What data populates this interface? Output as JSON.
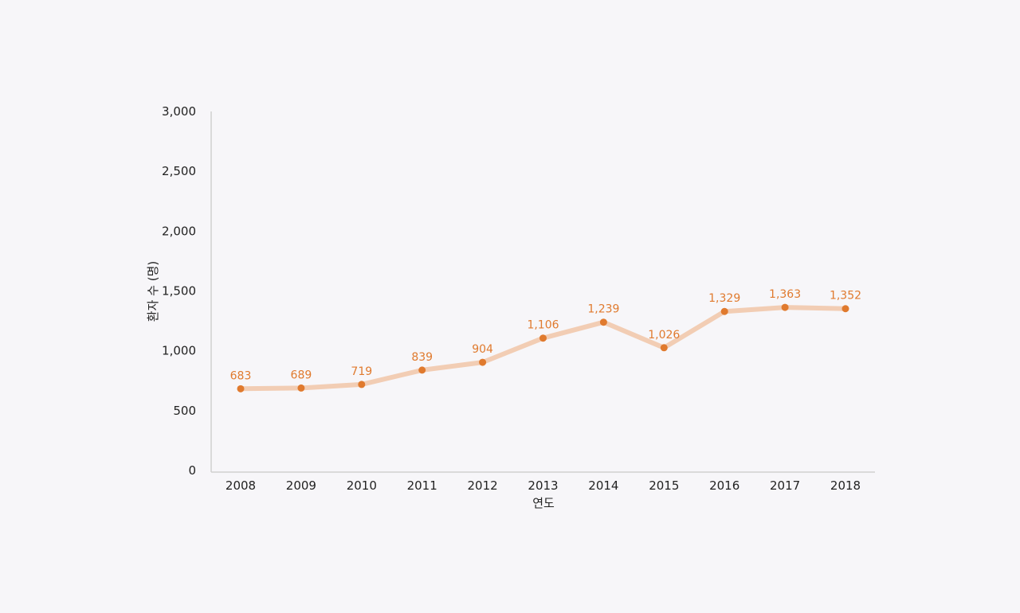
{
  "chart_data": {
    "type": "line",
    "title": "",
    "xlabel": "연도",
    "ylabel": "환자 수 (명)",
    "ylim": [
      0,
      3000
    ],
    "yticks": [
      0,
      500,
      1000,
      1500,
      2000,
      2500,
      3000
    ],
    "ytick_labels": [
      "0",
      "500",
      "1,000",
      "1,500",
      "2,000",
      "2,500",
      "3,000"
    ],
    "categories": [
      "2008",
      "2009",
      "2010",
      "2011",
      "2012",
      "2013",
      "2014",
      "2015",
      "2016",
      "2017",
      "2018"
    ],
    "series": [
      {
        "values": [
          683,
          689,
          719,
          839,
          904,
          1106,
          1239,
          1026,
          1329,
          1363,
          1352
        ],
        "labels": [
          "683",
          "689",
          "719",
          "839",
          "904",
          "1,106",
          "1,239",
          "1,026",
          "1,329",
          "1,363",
          "1,352"
        ],
        "line_color": "#f2cdb4",
        "marker_color": "#e07a2e",
        "label_color": "#e07a2e"
      }
    ],
    "grid": false,
    "legend": "none",
    "colors": {
      "background": "#f7f6f9",
      "axis": "#d0d0d0",
      "text": "#222222"
    }
  }
}
